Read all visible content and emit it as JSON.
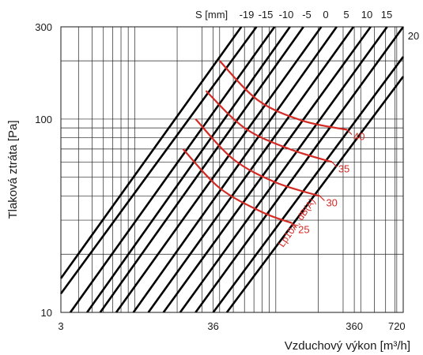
{
  "chart_data": {
    "type": "line",
    "title": "",
    "xlabel": "Vzduchový výkon [m³/h]",
    "ylabel": "Tlaková ztráta [Pa]",
    "x_scale": "log",
    "y_scale": "log",
    "xlim": [
      3,
      800
    ],
    "ylim": [
      10,
      300
    ],
    "x_ticks": [
      "3",
      "36",
      "360",
      "720"
    ],
    "y_ticks": [
      "300",
      "100",
      "10"
    ],
    "grid": true,
    "s_axis_label": "S [mm]",
    "s_ticks": [
      "-19",
      "-15",
      "-10",
      "-5",
      "0",
      "5",
      "10",
      "15",
      "20"
    ],
    "s_lines": [
      {
        "s": "-19",
        "points": [
          [
            3,
            15
          ],
          [
            57,
            300
          ]
        ]
      },
      {
        "s": "-17",
        "points": [
          [
            3,
            12.5
          ],
          [
            73,
            300
          ]
        ]
      },
      {
        "s": "-15",
        "points": [
          [
            3.5,
            10
          ],
          [
            98,
            300
          ]
        ]
      },
      {
        "s": "-13",
        "points": [
          [
            4.6,
            10
          ],
          [
            126,
            300
          ]
        ]
      },
      {
        "s": "-10",
        "points": [
          [
            5.7,
            10
          ],
          [
            157,
            300
          ]
        ]
      },
      {
        "s": "-8",
        "points": [
          [
            7.4,
            10
          ],
          [
            210,
            300
          ]
        ]
      },
      {
        "s": "-5",
        "points": [
          [
            9.8,
            10
          ],
          [
            270,
            300
          ]
        ]
      },
      {
        "s": "-2",
        "points": [
          [
            12.5,
            10
          ],
          [
            355,
            300
          ]
        ]
      },
      {
        "s": "0",
        "points": [
          [
            16,
            10
          ],
          [
            470,
            300
          ]
        ]
      },
      {
        "s": "5",
        "points": [
          [
            21,
            10
          ],
          [
            615,
            300
          ]
        ]
      },
      {
        "s": "10",
        "points": [
          [
            27,
            10
          ],
          [
            800,
            300
          ]
        ]
      },
      {
        "s": "15",
        "points": [
          [
            36,
            10
          ],
          [
            800,
            210
          ]
        ]
      },
      {
        "s": "20",
        "points": [
          [
            45,
            10
          ],
          [
            800,
            166
          ]
        ]
      }
    ],
    "noise_label": "Lp10A, dB(A)",
    "noise_curves": [
      {
        "name": "25",
        "points": [
          [
            22,
            70
          ],
          [
            40,
            44
          ],
          [
            80,
            33
          ],
          [
            130,
            29
          ]
        ]
      },
      {
        "name": "30",
        "points": [
          [
            27,
            100
          ],
          [
            50,
            62
          ],
          [
            100,
            47
          ],
          [
            205,
            40
          ]
        ]
      },
      {
        "name": "35",
        "points": [
          [
            32,
            140
          ],
          [
            60,
            90
          ],
          [
            125,
            70
          ],
          [
            250,
            60
          ]
        ]
      },
      {
        "name": "40",
        "points": [
          [
            40,
            200
          ],
          [
            75,
            125
          ],
          [
            155,
            98
          ],
          [
            320,
            88
          ]
        ]
      }
    ]
  }
}
